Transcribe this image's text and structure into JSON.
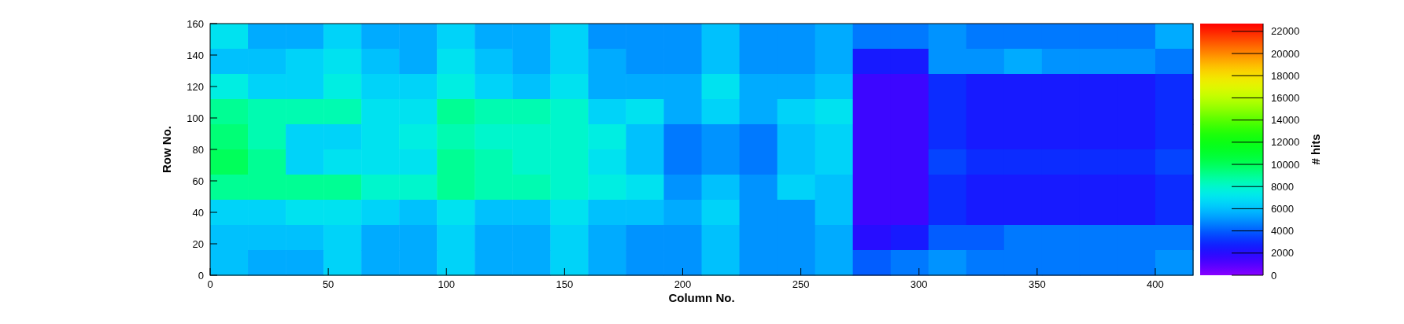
{
  "chart_data": {
    "type": "heatmap",
    "xlabel": "Column No.",
    "ylabel": "Row No.",
    "clabel": "# hits",
    "xlim": [
      0,
      416
    ],
    "xticks": [
      0,
      50,
      100,
      150,
      200,
      250,
      300,
      350,
      400
    ],
    "ylim": [
      0,
      160
    ],
    "yticks": [
      0,
      20,
      40,
      60,
      80,
      100,
      120,
      140,
      160
    ],
    "clim": [
      0,
      22700
    ],
    "cticks": [
      0,
      2000,
      4000,
      6000,
      8000,
      10000,
      12000,
      14000,
      16000,
      18000,
      20000,
      22000
    ],
    "cells": [
      [
        7000,
        5500,
        5500,
        6500,
        5500,
        5500,
        6500,
        5500,
        5500,
        6500,
        5000,
        5000,
        5000,
        6000,
        5000,
        5000,
        5500,
        4500,
        4500,
        5000,
        4500,
        4500,
        4500,
        4500,
        4500,
        5500
      ],
      [
        6000,
        6000,
        6500,
        7000,
        6000,
        5500,
        7000,
        6000,
        5500,
        6500,
        5500,
        5000,
        5000,
        6000,
        5000,
        5000,
        5500,
        2500,
        2500,
        5000,
        5000,
        5500,
        5000,
        5000,
        5000,
        4500
      ],
      [
        7500,
        6500,
        6500,
        7500,
        6500,
        6500,
        7500,
        6500,
        6000,
        7000,
        5500,
        5500,
        5500,
        7000,
        5500,
        5500,
        6000,
        1500,
        1500,
        3000,
        2500,
        2500,
        2500,
        2500,
        2500,
        3000
      ],
      [
        9000,
        8500,
        8500,
        8500,
        7000,
        7000,
        9000,
        8500,
        8500,
        8000,
        6500,
        7000,
        5500,
        6500,
        5500,
        6500,
        7000,
        1500,
        1500,
        3000,
        2500,
        2500,
        2500,
        2500,
        2500,
        3000
      ],
      [
        9500,
        8500,
        6500,
        6500,
        7000,
        7500,
        8500,
        8000,
        8000,
        8000,
        7500,
        6000,
        4500,
        5000,
        4500,
        6000,
        6500,
        1500,
        1500,
        3000,
        2500,
        2500,
        2500,
        2500,
        2500,
        3000
      ],
      [
        10000,
        9000,
        6500,
        7000,
        7000,
        7000,
        9000,
        8500,
        8000,
        8000,
        7000,
        6000,
        4500,
        5000,
        4500,
        6000,
        6500,
        1500,
        1500,
        3500,
        3000,
        3000,
        3000,
        3000,
        3000,
        3500
      ],
      [
        9000,
        9000,
        9000,
        9000,
        8000,
        8000,
        9000,
        8500,
        8500,
        8000,
        7500,
        7000,
        5000,
        6000,
        5000,
        6500,
        6000,
        1500,
        1500,
        3000,
        2500,
        2500,
        2500,
        2500,
        2500,
        3000
      ],
      [
        6500,
        6500,
        7000,
        7000,
        6500,
        6000,
        7000,
        6000,
        6000,
        7000,
        6000,
        6000,
        5500,
        6500,
        5000,
        5000,
        6000,
        1500,
        1500,
        3000,
        2500,
        2500,
        2500,
        2500,
        2500,
        3000
      ],
      [
        6000,
        6000,
        6000,
        6500,
        5500,
        5500,
        6500,
        5500,
        5500,
        6500,
        5500,
        5000,
        5000,
        6000,
        5000,
        5000,
        5500,
        2000,
        2500,
        4000,
        4000,
        4500,
        4500,
        4500,
        4500,
        4500
      ],
      [
        6000,
        5500,
        5500,
        6500,
        5500,
        5500,
        6500,
        5500,
        5500,
        6500,
        5500,
        5000,
        5000,
        6000,
        5000,
        5000,
        5500,
        4000,
        4500,
        5000,
        4500,
        4500,
        4500,
        4500,
        4500,
        5000
      ]
    ]
  }
}
